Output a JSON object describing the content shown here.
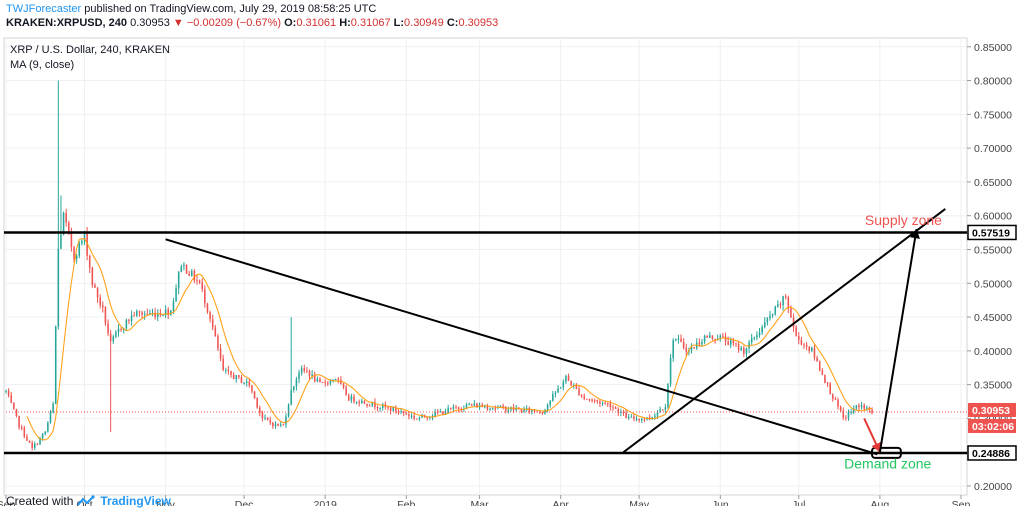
{
  "header": {
    "author": "TWJForecaster",
    "published_text": " published on TradingView.com, July 29, 2019 08:58:25 UTC",
    "ticker": "KRAKEN:XRPUSD, 240",
    "last": "0.30953",
    "change": "▼ −0.00209 (−0.67%)",
    "o_label": "O:",
    "o_value": "0.31061",
    "h_label": "H:",
    "h_value": "0.31067",
    "l_label": "L:",
    "l_value": "0.30949",
    "c_label": "C:",
    "c_value": "0.30953"
  },
  "legend": {
    "symbol_line": "XRP / U.S. Dollar, 240, KRAKEN",
    "indicator_line": "MA (9, close)"
  },
  "footer": {
    "created_with": "Created with",
    "brand": "TradingView"
  },
  "colors": {
    "up": "#26a69a",
    "down": "#ef5350",
    "ma": "#ff9800",
    "annotation": "#000000",
    "supply_text": "#ef5350",
    "demand_text": "#22c55e",
    "price_line": "#ef5350",
    "countdown_bg": "#ef5350",
    "axis_text": "#444444"
  },
  "chart_data": {
    "type": "candlestick",
    "instrument": "XRP / U.S. Dollar",
    "interval": "240",
    "x_ticks": [
      "Sep",
      "Oct",
      "Nov",
      "Dec",
      "2019",
      "Feb",
      "Mar",
      "Apr",
      "May",
      "Jun",
      "Jul",
      "Aug",
      "Sep"
    ],
    "x_range": [
      "2018-09-01",
      "2019-09-01"
    ],
    "y_ticks": [
      "0.20000",
      "0.25000",
      "0.30000",
      "0.35000",
      "0.40000",
      "0.45000",
      "0.50000",
      "0.55000",
      "0.60000",
      "0.65000",
      "0.70000",
      "0.75000",
      "0.80000",
      "0.85000"
    ],
    "ylim": [
      0.2,
      0.86
    ],
    "price_path": [
      [
        "2018-09-01",
        0.34
      ],
      [
        "2018-09-06",
        0.29
      ],
      [
        "2018-09-11",
        0.255
      ],
      [
        "2018-09-16",
        0.28
      ],
      [
        "2018-09-19",
        0.32
      ],
      [
        "2018-09-21",
        0.55
      ],
      [
        "2018-09-23",
        0.6
      ],
      [
        "2018-09-27",
        0.54
      ],
      [
        "2018-10-01",
        0.57
      ],
      [
        "2018-10-04",
        0.5
      ],
      [
        "2018-10-08",
        0.46
      ],
      [
        "2018-10-11",
        0.41
      ],
      [
        "2018-10-14",
        0.43
      ],
      [
        "2018-10-20",
        0.455
      ],
      [
        "2018-10-28",
        0.455
      ],
      [
        "2018-11-03",
        0.46
      ],
      [
        "2018-11-07",
        0.53
      ],
      [
        "2018-11-09",
        0.52
      ],
      [
        "2018-11-14",
        0.5
      ],
      [
        "2018-11-18",
        0.45
      ],
      [
        "2018-11-23",
        0.37
      ],
      [
        "2018-11-28",
        0.36
      ],
      [
        "2018-12-03",
        0.35
      ],
      [
        "2018-12-08",
        0.3
      ],
      [
        "2018-12-13",
        0.29
      ],
      [
        "2018-12-16",
        0.29
      ],
      [
        "2018-12-19",
        0.34
      ],
      [
        "2018-12-22",
        0.37
      ],
      [
        "2018-12-25",
        0.37
      ],
      [
        "2018-12-30",
        0.35
      ],
      [
        "2019-01-05",
        0.36
      ],
      [
        "2019-01-10",
        0.33
      ],
      [
        "2019-01-20",
        0.32
      ],
      [
        "2019-01-30",
        0.31
      ],
      [
        "2019-02-05",
        0.3
      ],
      [
        "2019-02-15",
        0.31
      ],
      [
        "2019-02-25",
        0.32
      ],
      [
        "2019-03-10",
        0.315
      ],
      [
        "2019-03-25",
        0.31
      ],
      [
        "2019-04-03",
        0.36
      ],
      [
        "2019-04-10",
        0.33
      ],
      [
        "2019-04-20",
        0.32
      ],
      [
        "2019-04-27",
        0.3
      ],
      [
        "2019-05-05",
        0.3
      ],
      [
        "2019-05-11",
        0.32
      ],
      [
        "2019-05-14",
        0.42
      ],
      [
        "2019-05-20",
        0.4
      ],
      [
        "2019-05-26",
        0.42
      ],
      [
        "2019-06-01",
        0.42
      ],
      [
        "2019-06-10",
        0.4
      ],
      [
        "2019-06-20",
        0.45
      ],
      [
        "2019-06-26",
        0.48
      ],
      [
        "2019-06-30",
        0.42
      ],
      [
        "2019-07-06",
        0.4
      ],
      [
        "2019-07-13",
        0.34
      ],
      [
        "2019-07-18",
        0.3
      ],
      [
        "2019-07-24",
        0.32
      ],
      [
        "2019-07-29",
        0.3095
      ]
    ],
    "spikes": [
      {
        "date": "2018-09-21",
        "high": 0.8
      },
      {
        "date": "2018-09-22",
        "high": 0.63
      },
      {
        "date": "2018-10-11",
        "low": 0.28
      },
      {
        "date": "2018-12-19",
        "high": 0.45
      }
    ],
    "horizontal_levels": [
      0.57519,
      0.24886
    ],
    "current_price": 0.30953,
    "axis_labels": [
      {
        "value": 0.57519,
        "text": "0.57519",
        "style": "dark"
      },
      {
        "value": 0.30953,
        "text": "0.30953",
        "style": "red"
      },
      {
        "value": 0.30953,
        "text": "03:02:06",
        "style": "red-sub"
      },
      {
        "value": 0.24886,
        "text": "0.24886",
        "style": "dark"
      }
    ],
    "trendlines": [
      {
        "from": [
          "2018-11-01",
          0.565
        ],
        "to": [
          "2019-07-31",
          0.247
        ]
      },
      {
        "from": [
          "2019-04-25",
          0.25
        ],
        "to": [
          "2019-08-26",
          0.61
        ]
      }
    ],
    "arrows": [
      {
        "from": [
          "2019-07-26",
          0.3
        ],
        "to": [
          "2019-08-01",
          0.25
        ],
        "color": "red"
      },
      {
        "from": [
          "2019-08-01",
          0.25
        ],
        "to": [
          "2019-08-15",
          0.58
        ],
        "color": "black"
      }
    ],
    "zones": [
      {
        "label": "Supply zone",
        "date": "2019-08-10",
        "value": 0.586
      },
      {
        "label": "Demand zone",
        "date": "2019-08-04",
        "value": 0.233
      }
    ],
    "demand_box": {
      "from": "2019-07-29",
      "to": "2019-08-09",
      "value": 0.249
    }
  }
}
